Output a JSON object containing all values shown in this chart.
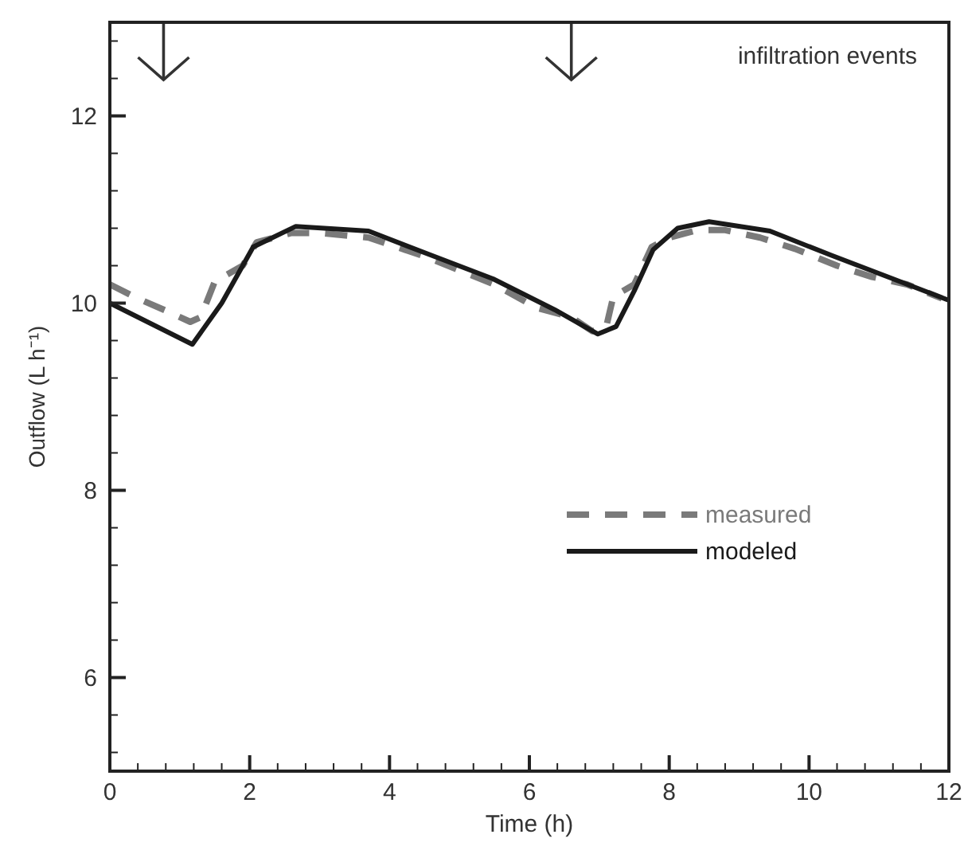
{
  "chart_data": {
    "type": "line",
    "xlabel": "Time (h)",
    "ylabel": "Outflow (L h⁻¹)",
    "xlim": [
      0,
      12
    ],
    "ylim": [
      5,
      13
    ],
    "xticks": [
      0,
      {
        "value": 0.4,
        "label": null
      },
      {
        "value": 0.8,
        "label": null
      },
      {
        "value": 1.2,
        "label": null
      },
      {
        "value": 1.6,
        "label": null
      },
      2,
      {
        "value": 2.4,
        "label": null
      },
      {
        "value": 2.8,
        "label": null
      },
      {
        "value": 3.2,
        "label": null
      },
      {
        "value": 3.6,
        "label": null
      },
      4,
      {
        "value": 4.4,
        "label": null
      },
      {
        "value": 4.8,
        "label": null
      },
      {
        "value": 5.2,
        "label": null
      },
      {
        "value": 5.6,
        "label": null
      },
      6,
      {
        "value": 6.4,
        "label": null
      },
      {
        "value": 6.8,
        "label": null
      },
      {
        "value": 7.2,
        "label": null
      },
      {
        "value": 7.6,
        "label": null
      },
      8,
      {
        "value": 8.4,
        "label": null
      },
      {
        "value": 8.8,
        "label": null
      },
      {
        "value": 9.2,
        "label": null
      },
      {
        "value": 9.6,
        "label": null
      },
      10,
      {
        "value": 10.4,
        "label": null
      },
      {
        "value": 10.8,
        "label": null
      },
      {
        "value": 11.2,
        "label": null
      },
      {
        "value": 11.6,
        "label": null
      },
      12
    ],
    "yticks": [
      {
        "value": 5.2,
        "label": null
      },
      {
        "value": 5.6,
        "label": null
      },
      6,
      {
        "value": 6.4,
        "label": null
      },
      {
        "value": 6.8,
        "label": null
      },
      {
        "value": 7.2,
        "label": null
      },
      {
        "value": 7.6,
        "label": null
      },
      8,
      {
        "value": 8.4,
        "label": null
      },
      {
        "value": 8.8,
        "label": null
      },
      {
        "value": 9.2,
        "label": null
      },
      {
        "value": 9.6,
        "label": null
      },
      10,
      {
        "value": 10.4,
        "label": null
      },
      {
        "value": 10.8,
        "label": null
      },
      {
        "value": 11.2,
        "label": null
      },
      {
        "value": 11.6,
        "label": null
      },
      12,
      {
        "value": 12.4,
        "label": null
      },
      {
        "value": 12.8,
        "label": null
      }
    ],
    "grid": false,
    "legend": "bottom right",
    "marker": "none",
    "annotations": [
      "infiltration events"
    ],
    "series": [
      {
        "name": "measured",
        "color": "#7a7a7a",
        "line_style": "dashed",
        "x": [
          0,
          0.4,
          0.8,
          1.15,
          1.3,
          1.5,
          1.9,
          2.1,
          2.6,
          3.0,
          3.7,
          4.5,
          5.0,
          5.5,
          6.1,
          6.6,
          6.9,
          7.1,
          7.2,
          7.5,
          7.75,
          8.0,
          8.4,
          8.8,
          9.3,
          9.8,
          10.4,
          10.9,
          11.4,
          11.9
        ],
        "values": [
          10.2,
          10.05,
          9.92,
          9.8,
          9.85,
          10.23,
          10.4,
          10.65,
          10.75,
          10.75,
          10.7,
          10.5,
          10.35,
          10.2,
          9.95,
          9.85,
          9.7,
          9.75,
          10.07,
          10.2,
          10.6,
          10.7,
          10.78,
          10.78,
          10.7,
          10.58,
          10.4,
          10.28,
          10.2,
          10.05
        ]
      },
      {
        "name": "modeled",
        "color": "#1a1a1a",
        "line_style": "solid",
        "x": [
          0,
          1.18,
          1.6,
          2.05,
          2.66,
          3.7,
          4.6,
          5.48,
          6.36,
          6.98,
          7.24,
          7.5,
          7.77,
          8.12,
          8.57,
          9.44,
          10.32,
          11.2,
          12
        ],
        "values": [
          10.0,
          9.56,
          10.0,
          10.6,
          10.82,
          10.77,
          10.51,
          10.26,
          9.93,
          9.67,
          9.75,
          10.13,
          10.57,
          10.8,
          10.87,
          10.77,
          10.51,
          10.26,
          10.03
        ]
      }
    ]
  }
}
